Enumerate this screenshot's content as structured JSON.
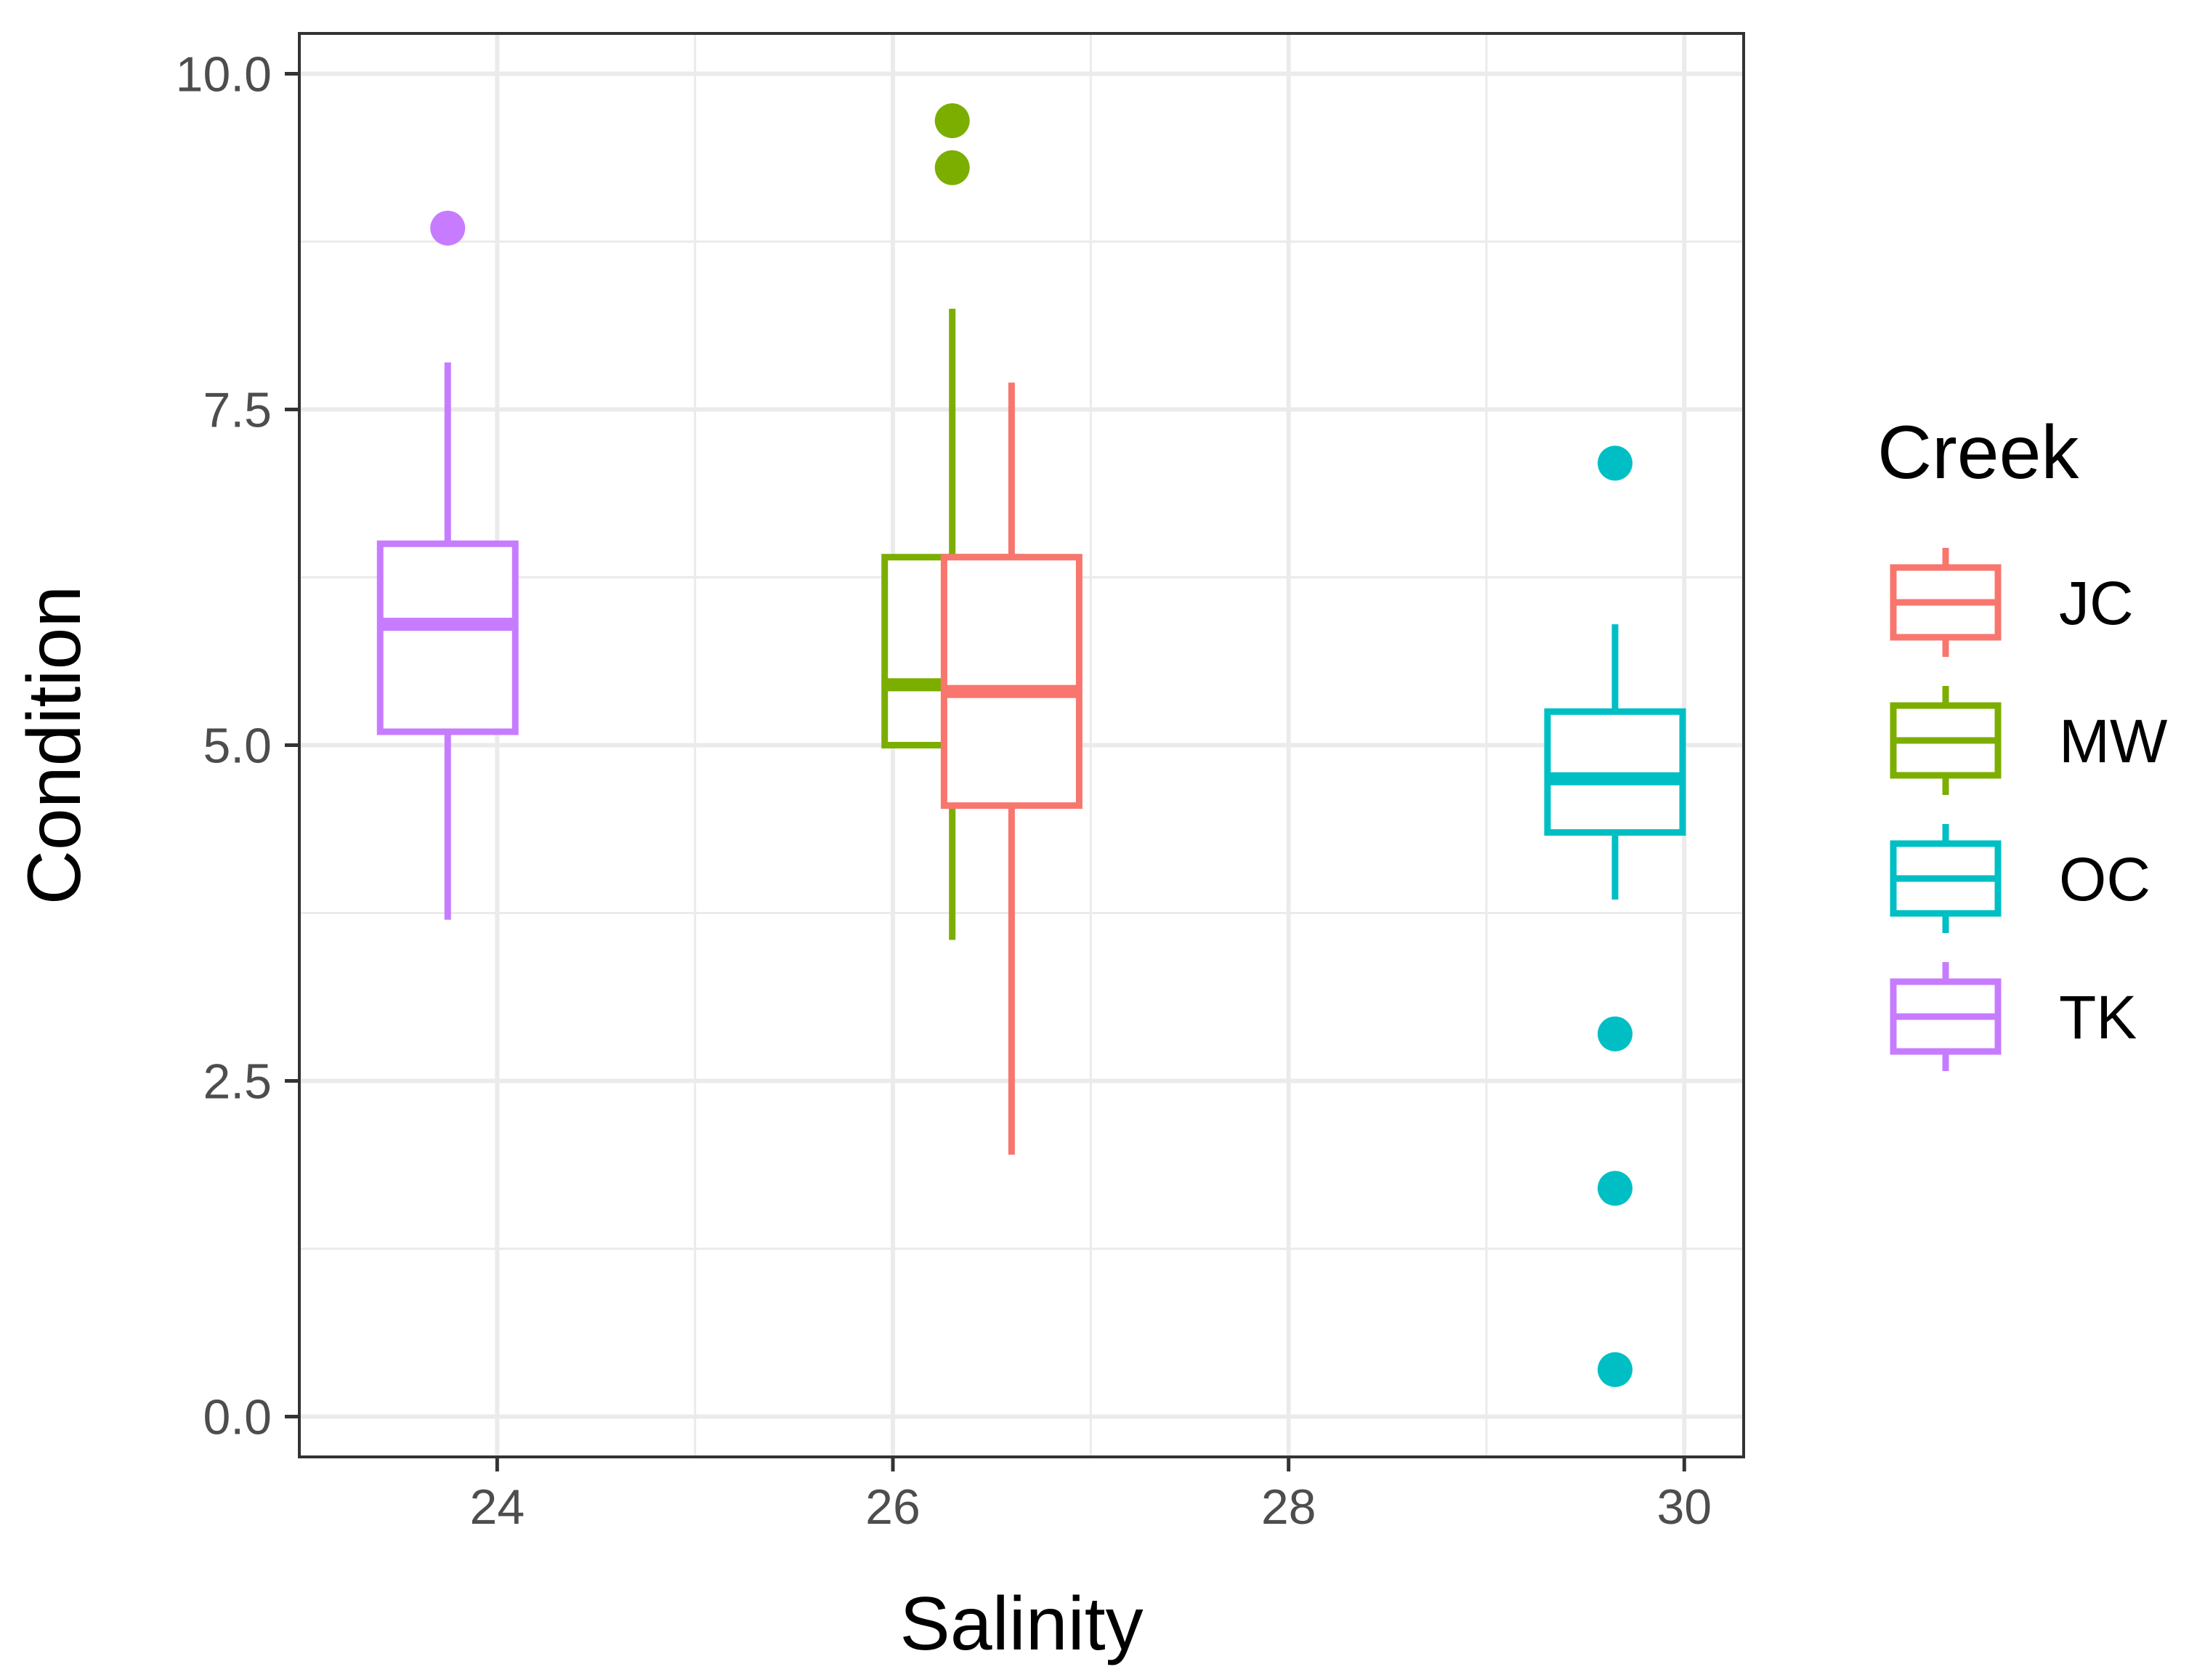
{
  "chart_data": {
    "type": "boxplot",
    "xlabel": "Salinity",
    "ylabel": "Condition",
    "xlim": [
      23.0,
      30.3
    ],
    "ylim": [
      -0.3,
      10.3
    ],
    "x_ticks": [
      24,
      26,
      28,
      30
    ],
    "x_tick_labels": [
      "24",
      "26",
      "28",
      "30"
    ],
    "y_ticks": [
      0.0,
      2.5,
      5.0,
      7.5,
      10.0
    ],
    "y_tick_labels": [
      "0.0",
      "2.5",
      "5.0",
      "7.5",
      "10.0"
    ],
    "grid": true,
    "legend": {
      "title": "Creek",
      "position": "right",
      "entries": [
        "JC",
        "MW",
        "OC",
        "TK"
      ]
    },
    "series": [
      {
        "name": "TK",
        "color": "#C77CFF",
        "salinity": 23.75,
        "whisker_low": 3.7,
        "q1": 5.1,
        "median": 5.9,
        "q3": 6.5,
        "whisker_high": 7.85,
        "outliers": [
          8.85
        ]
      },
      {
        "name": "MW",
        "color": "#7CAE00",
        "salinity": 26.3,
        "whisker_low": 3.55,
        "q1": 5.0,
        "median": 5.45,
        "q3": 6.4,
        "whisker_high": 8.25,
        "outliers": [
          9.3,
          9.65
        ]
      },
      {
        "name": "JC",
        "color": "#F8766D",
        "salinity": 26.6,
        "whisker_low": 1.95,
        "q1": 4.55,
        "median": 5.4,
        "q3": 6.4,
        "whisker_high": 7.7,
        "outliers": []
      },
      {
        "name": "OC",
        "color": "#00BFC4",
        "salinity": 29.65,
        "whisker_low": 3.85,
        "q1": 4.35,
        "median": 4.75,
        "q3": 5.25,
        "whisker_high": 5.9,
        "outliers": [
          7.1,
          2.85,
          1.7,
          0.35
        ]
      }
    ]
  }
}
